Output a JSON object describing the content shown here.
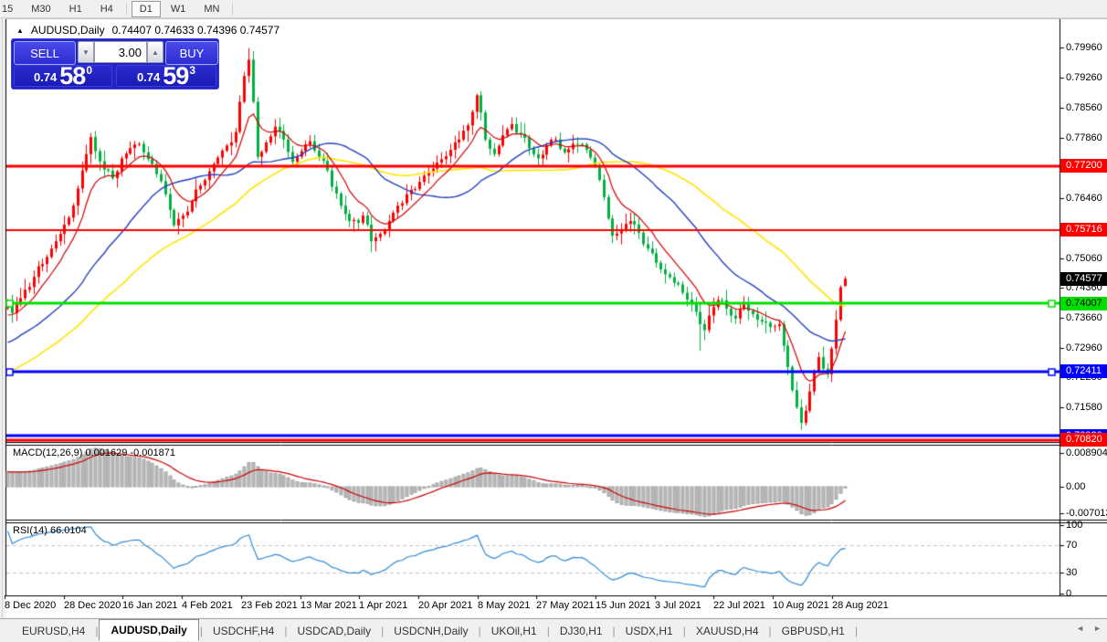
{
  "toolbar": {
    "timeframes": [
      {
        "label": "15",
        "active": false
      },
      {
        "label": "M30",
        "active": false
      },
      {
        "label": "H1",
        "active": false
      },
      {
        "label": "H4",
        "active": false
      },
      {
        "label": "D1",
        "active": true
      },
      {
        "label": "W1",
        "active": false
      },
      {
        "label": "MN",
        "active": false
      }
    ]
  },
  "chart": {
    "title": {
      "collapse_icon": "▲",
      "symbol": "AUDUSD,Daily",
      "ohlc": "0.74407 0.74633 0.74396 0.74577"
    },
    "trade_panel": {
      "sell_label": "SELL",
      "buy_label": "BUY",
      "volume": "3.00",
      "volume_down_icon": "▼",
      "volume_up_icon": "▲",
      "sell_price": {
        "small": "0.74",
        "big": "58",
        "sup": "0"
      },
      "buy_price": {
        "small": "0.74",
        "big": "59",
        "sup": "3"
      }
    },
    "price_axis": {
      "ticks": [
        "0.79960",
        "0.79260",
        "0.78560",
        "0.77860",
        "0.77160",
        "0.76460",
        "0.75760",
        "0.75060",
        "0.74360",
        "0.73660",
        "0.72960",
        "0.72280",
        "0.71580",
        "0.70860"
      ],
      "badges": [
        {
          "text": "0.77200",
          "price": 0.772,
          "bg": "#FF0000",
          "fg": "#FFFFFF"
        },
        {
          "text": "0.75716",
          "price": 0.75716,
          "bg": "#FF0000",
          "fg": "#FFFFFF"
        },
        {
          "text": "0.74007",
          "price": 0.74007,
          "bg": "#00E000",
          "fg": "#000000"
        },
        {
          "text": "0.72411",
          "price": 0.72411,
          "bg": "#0000FF",
          "fg": "#FFFFFF"
        },
        {
          "text": "0.70920",
          "price": 0.7092,
          "bg": "#0000FF",
          "fg": "#FFFFFF"
        },
        {
          "text": "0.70820",
          "price": 0.7082,
          "bg": "#FF0000",
          "fg": "#FFFFFF"
        }
      ],
      "current_badge": {
        "text": "0.74577",
        "price": 0.74577,
        "bg": "#000000",
        "fg": "#FFFFFF"
      }
    },
    "date_axis": [
      "8 Dec 2020",
      "28 Dec 2020",
      "16 Jan 2021",
      "4 Feb 2021",
      "23 Feb 2021",
      "13 Mar 2021",
      "1 Apr 2021",
      "20 Apr 2021",
      "8 May 2021",
      "27 May 2021",
      "15 Jun 2021",
      "3 Jul 2021",
      "22 Jul 2021",
      "10 Aug 2021",
      "28 Aug 2021"
    ],
    "indicators": {
      "macd": {
        "label": "MACD(12,26,9) 0.001629 -0.001871",
        "scale": [
          "0.008904",
          "0.00",
          "-0.007013"
        ],
        "scale_values": [
          0.008904,
          0,
          -0.007013
        ]
      },
      "rsi": {
        "label": "RSI(14) 66.0104",
        "scale": [
          "100",
          "70",
          "30",
          "0"
        ],
        "scale_values": [
          100,
          70,
          30,
          0
        ]
      }
    }
  },
  "tabs": {
    "items": [
      {
        "label": "EURUSD,H4",
        "active": false
      },
      {
        "label": "AUDUSD,Daily",
        "active": true
      },
      {
        "label": "USDCHF,H4",
        "active": false
      },
      {
        "label": "USDCAD,Daily",
        "active": false
      },
      {
        "label": "USDCNH,Daily",
        "active": false
      },
      {
        "label": "UKOil,H1",
        "active": false
      },
      {
        "label": "DJ30,H1",
        "active": false
      },
      {
        "label": "USDX,H1",
        "active": false
      },
      {
        "label": "XAUUSD,H4",
        "active": false
      },
      {
        "label": "GBPUSD,H1",
        "active": false
      }
    ],
    "scroll_left_icon": "◄",
    "scroll_right_icon": "►"
  },
  "chart_data": {
    "type": "candlestick",
    "symbol": "AUDUSD",
    "timeframe": "Daily",
    "up_color": "#FF0000",
    "down_color": "#00B140",
    "candle_count": 192,
    "close_anchors": [
      [
        0,
        0.7405
      ],
      [
        1,
        0.7378
      ],
      [
        2,
        0.7398
      ],
      [
        4,
        0.7432
      ],
      [
        6,
        0.7462
      ],
      [
        8,
        0.7492
      ],
      [
        10,
        0.7528
      ],
      [
        12,
        0.7562
      ],
      [
        14,
        0.76
      ],
      [
        16,
        0.7668
      ],
      [
        18,
        0.7748
      ],
      [
        19,
        0.7788
      ],
      [
        20,
        0.7755
      ],
      [
        22,
        0.7712
      ],
      [
        24,
        0.7692
      ],
      [
        26,
        0.7738
      ],
      [
        28,
        0.7762
      ],
      [
        30,
        0.7772
      ],
      [
        33,
        0.7725
      ],
      [
        35,
        0.7685
      ],
      [
        37,
        0.7618
      ],
      [
        38,
        0.7582
      ],
      [
        40,
        0.7605
      ],
      [
        42,
        0.7638
      ],
      [
        44,
        0.7675
      ],
      [
        46,
        0.7708
      ],
      [
        48,
        0.774
      ],
      [
        50,
        0.7768
      ],
      [
        52,
        0.78
      ],
      [
        53,
        0.787
      ],
      [
        54,
        0.793
      ],
      [
        55,
        0.7968
      ],
      [
        56,
        0.787
      ],
      [
        57,
        0.7742
      ],
      [
        59,
        0.7775
      ],
      [
        61,
        0.7812
      ],
      [
        63,
        0.7782
      ],
      [
        65,
        0.773
      ],
      [
        67,
        0.7755
      ],
      [
        69,
        0.7778
      ],
      [
        71,
        0.7742
      ],
      [
        73,
        0.771
      ],
      [
        74,
        0.7672
      ],
      [
        76,
        0.7628
      ],
      [
        78,
        0.7592
      ],
      [
        80,
        0.7588
      ],
      [
        81,
        0.7605
      ],
      [
        83,
        0.7545
      ],
      [
        85,
        0.7562
      ],
      [
        87,
        0.7592
      ],
      [
        89,
        0.7628
      ],
      [
        92,
        0.7665
      ],
      [
        95,
        0.7698
      ],
      [
        98,
        0.7728
      ],
      [
        101,
        0.7758
      ],
      [
        103,
        0.7782
      ],
      [
        105,
        0.7815
      ],
      [
        107,
        0.7885
      ],
      [
        108,
        0.7845
      ],
      [
        109,
        0.7782
      ],
      [
        111,
        0.7748
      ],
      [
        113,
        0.7792
      ],
      [
        115,
        0.7818
      ],
      [
        117,
        0.7795
      ],
      [
        119,
        0.7762
      ],
      [
        121,
        0.7738
      ],
      [
        123,
        0.7768
      ],
      [
        125,
        0.7782
      ],
      [
        127,
        0.7752
      ],
      [
        129,
        0.7772
      ],
      [
        132,
        0.7758
      ],
      [
        134,
        0.7722
      ],
      [
        135,
        0.7688
      ],
      [
        136,
        0.7648
      ],
      [
        137,
        0.7598
      ],
      [
        138,
        0.7558
      ],
      [
        140,
        0.7572
      ],
      [
        142,
        0.7592
      ],
      [
        144,
        0.7565
      ],
      [
        146,
        0.7528
      ],
      [
        148,
        0.7495
      ],
      [
        150,
        0.7468
      ],
      [
        152,
        0.7448
      ],
      [
        154,
        0.7425
      ],
      [
        156,
        0.7398
      ],
      [
        158,
        0.7352
      ],
      [
        159,
        0.7338
      ],
      [
        160,
        0.7372
      ],
      [
        162,
        0.7408
      ],
      [
        164,
        0.7388
      ],
      [
        166,
        0.7365
      ],
      [
        168,
        0.7398
      ],
      [
        170,
        0.7375
      ],
      [
        172,
        0.7358
      ],
      [
        174,
        0.7345
      ],
      [
        176,
        0.7352
      ],
      [
        177,
        0.7302
      ],
      [
        178,
        0.7252
      ],
      [
        179,
        0.7198
      ],
      [
        180,
        0.7158
      ],
      [
        181,
        0.7122
      ],
      [
        182,
        0.715
      ],
      [
        183,
        0.7195
      ],
      [
        184,
        0.7242
      ],
      [
        185,
        0.7275
      ],
      [
        186,
        0.7248
      ],
      [
        187,
        0.7235
      ],
      [
        188,
        0.7295
      ],
      [
        189,
        0.7362
      ],
      [
        190,
        0.7438
      ],
      [
        191,
        0.74577
      ]
    ],
    "specials": {
      "55": {
        "high": 0.7995
      },
      "158": {
        "low": 0.729
      },
      "181": {
        "low": 0.7106
      }
    },
    "last_candle": {
      "open": 0.74407,
      "high": 0.74633,
      "low": 0.74396,
      "close": 0.74577
    },
    "moving_averages": [
      {
        "period": 9,
        "type": "ema",
        "color": "#D40000"
      },
      {
        "period": 30,
        "type": "sma",
        "color": "#2540C0"
      },
      {
        "period": 55,
        "type": "sma",
        "color": "#FFE400"
      }
    ],
    "levels": [
      {
        "value": 0.772,
        "color": "#FF0000",
        "width": 3,
        "handles": false
      },
      {
        "value": 0.75716,
        "color": "#FF0000",
        "width": 2,
        "handles": false
      },
      {
        "value": 0.74007,
        "color": "#00E000",
        "width": 3,
        "handles": true
      },
      {
        "value": 0.72411,
        "color": "#0000FF",
        "width": 3,
        "handles": true
      },
      {
        "value": 0.7092,
        "color": "#0000FF",
        "width": 3,
        "handles": false
      },
      {
        "value": 0.7082,
        "color": "#FF0000",
        "width": 3,
        "handles": false
      }
    ],
    "macd_colors": {
      "bar_fill": "#BDBDBD",
      "bar_stroke": "#A2A2A2",
      "signal": "#CC0000"
    },
    "rsi_color": "#2E8BD8",
    "rsi_levels": [
      70,
      30
    ]
  }
}
